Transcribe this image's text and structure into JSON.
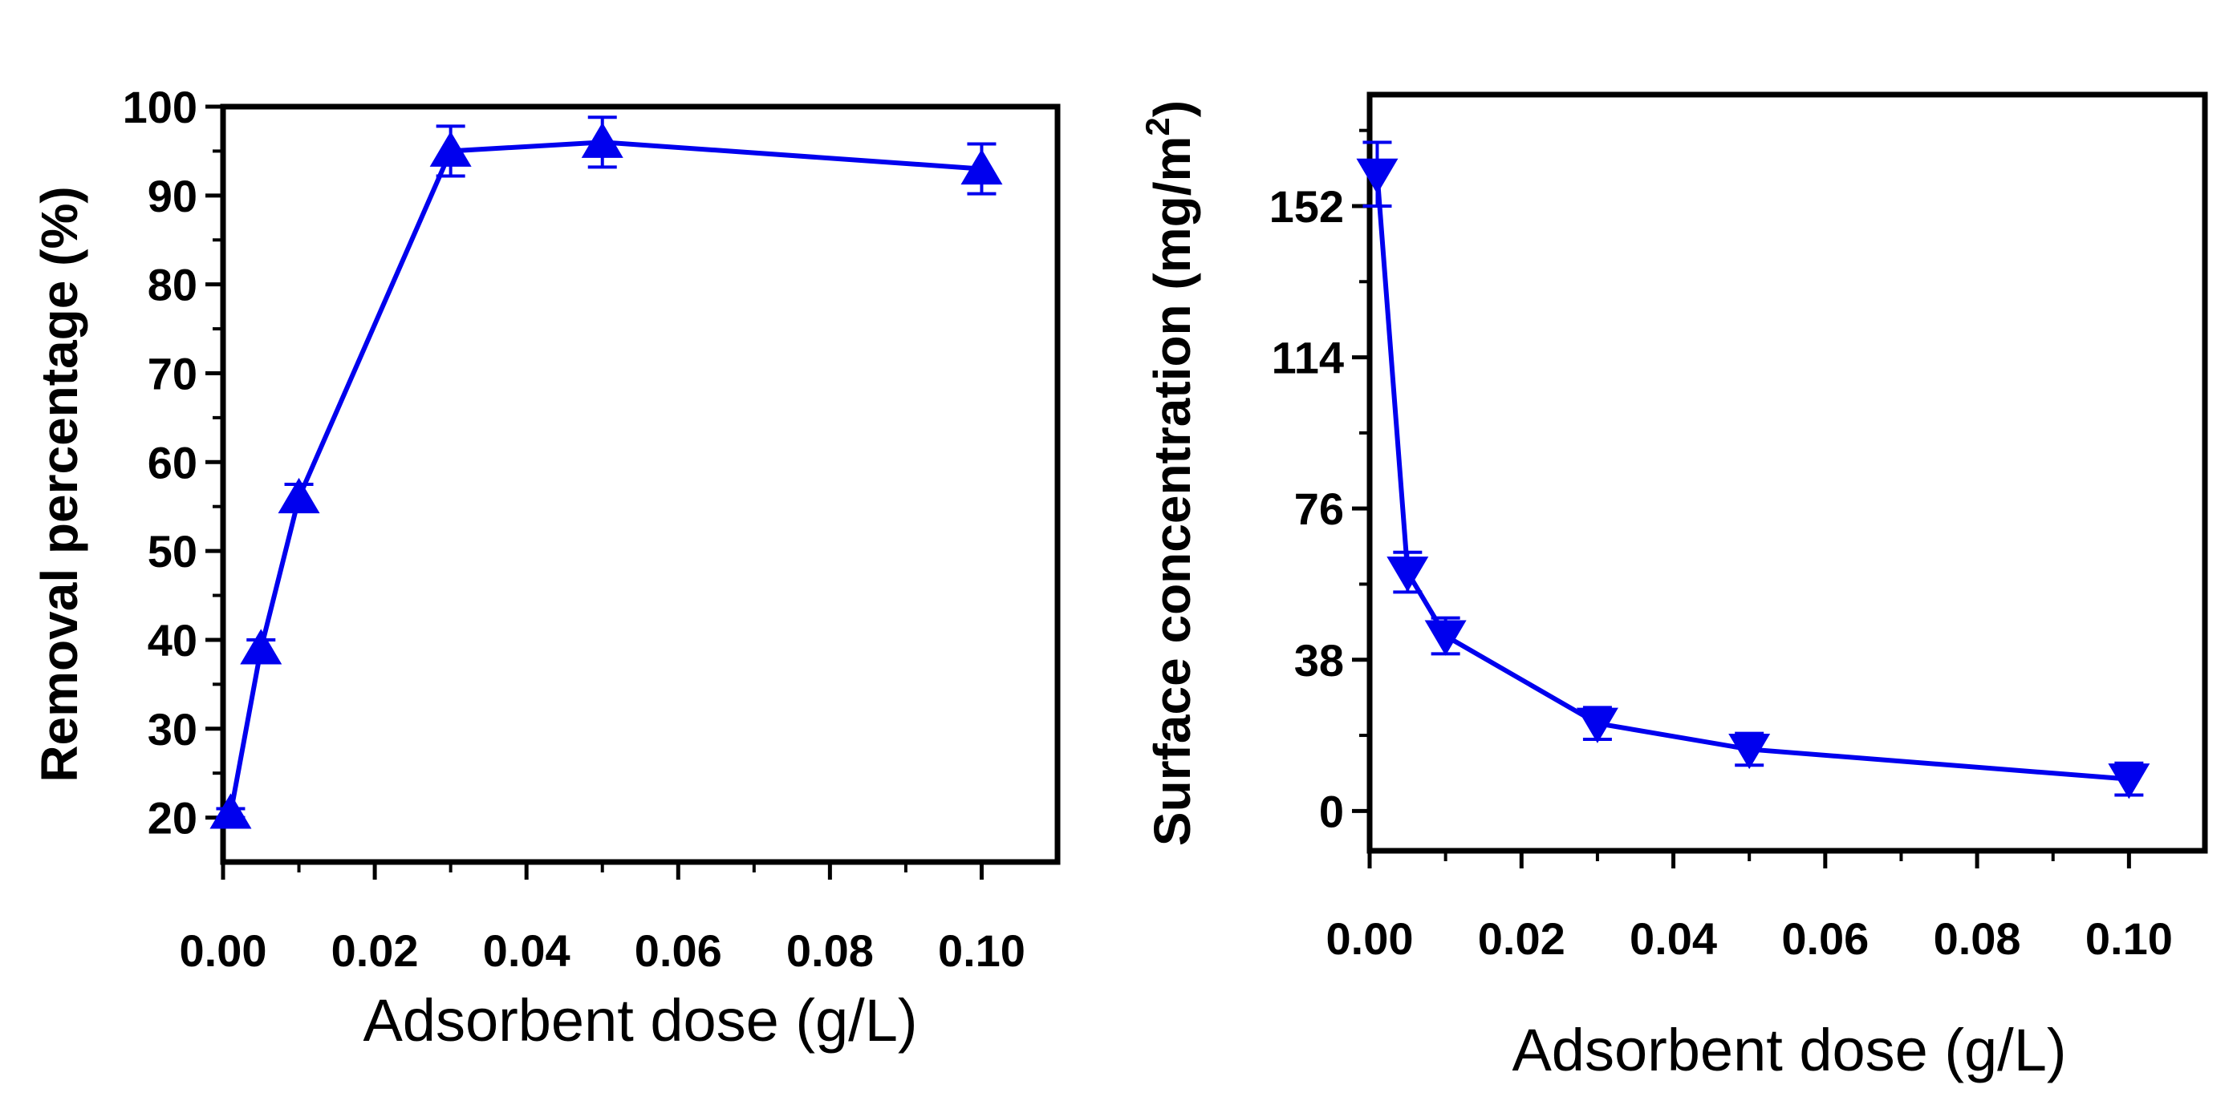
{
  "chart_data": [
    {
      "type": "line",
      "title": "",
      "xlabel": "Adsorbent dose (g/L)",
      "ylabel": "Removal percentage (%)",
      "xlim": [
        0,
        0.11
      ],
      "ylim": [
        15,
        100
      ],
      "x_ticks": [
        "0.00",
        "0.02",
        "0.04",
        "0.06",
        "0.08",
        "0.10"
      ],
      "y_ticks": [
        "20",
        "30",
        "40",
        "50",
        "60",
        "70",
        "80",
        "90",
        "100"
      ],
      "series": [
        {
          "name": "Removal percentage",
          "color": "#0000ee",
          "marker": "triangle-up",
          "x": [
            0.001,
            0.005,
            0.01,
            0.03,
            0.05,
            0.1
          ],
          "y": [
            20.5,
            39.0,
            56.0,
            95.0,
            96.0,
            93.0
          ],
          "error": [
            0.5,
            1.0,
            1.5,
            2.8,
            2.8,
            2.8
          ]
        }
      ]
    },
    {
      "type": "line",
      "title": "",
      "xlabel": "Adsorbent dose (g/L)",
      "ylabel": "Surface concentration (mg/m",
      "ylabel_superscript": "2",
      "ylabel_suffix": ")",
      "xlim": [
        0,
        0.11
      ],
      "ylim": [
        -10,
        180
      ],
      "x_ticks": [
        "0.00",
        "0.02",
        "0.04",
        "0.06",
        "0.08",
        "0.10"
      ],
      "y_ticks": [
        "0",
        "38",
        "76",
        "114",
        "152"
      ],
      "series": [
        {
          "name": "Surface concentration",
          "color": "#0000ee",
          "marker": "triangle-down",
          "x": [
            0.001,
            0.005,
            0.01,
            0.03,
            0.05,
            0.1
          ],
          "y": [
            160.0,
            60.0,
            44.0,
            22.0,
            15.5,
            8.0
          ],
          "error": [
            8.0,
            5.0,
            4.5,
            4.0,
            4.0,
            4.0
          ]
        }
      ]
    }
  ]
}
